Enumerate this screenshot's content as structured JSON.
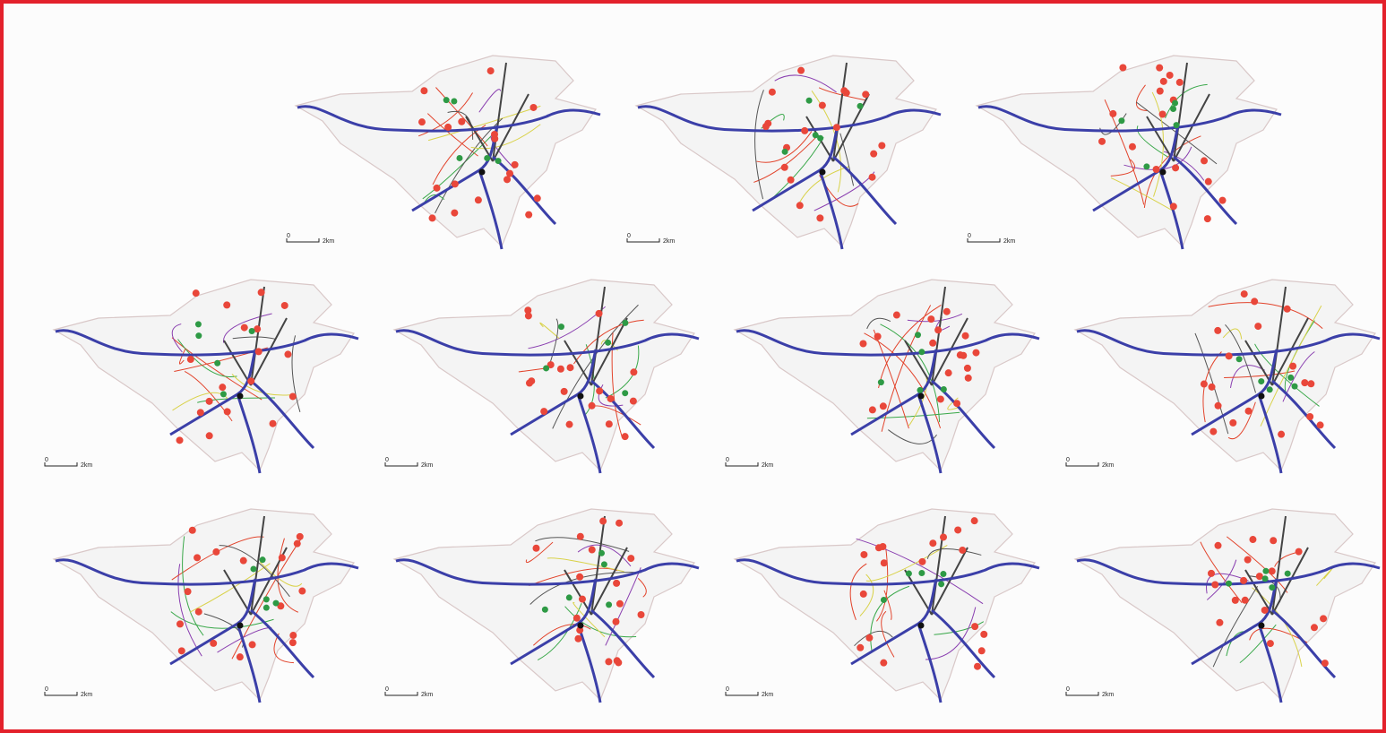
{
  "panels": [
    {
      "scale_start": "0",
      "scale_end": "2km"
    },
    {
      "scale_start": "0",
      "scale_end": "2km"
    },
    {
      "scale_start": "0",
      "scale_end": "2km"
    },
    {
      "scale_start": "0",
      "scale_end": "2km"
    },
    {
      "scale_start": "0",
      "scale_end": "2km"
    },
    {
      "scale_start": "0",
      "scale_end": "2km"
    },
    {
      "scale_start": "0",
      "scale_end": "2km"
    },
    {
      "scale_start": "0",
      "scale_end": "2km"
    },
    {
      "scale_start": "0",
      "scale_end": "2km"
    },
    {
      "scale_start": "0",
      "scale_end": "2km"
    },
    {
      "scale_start": "0",
      "scale_end": "2km"
    }
  ]
}
